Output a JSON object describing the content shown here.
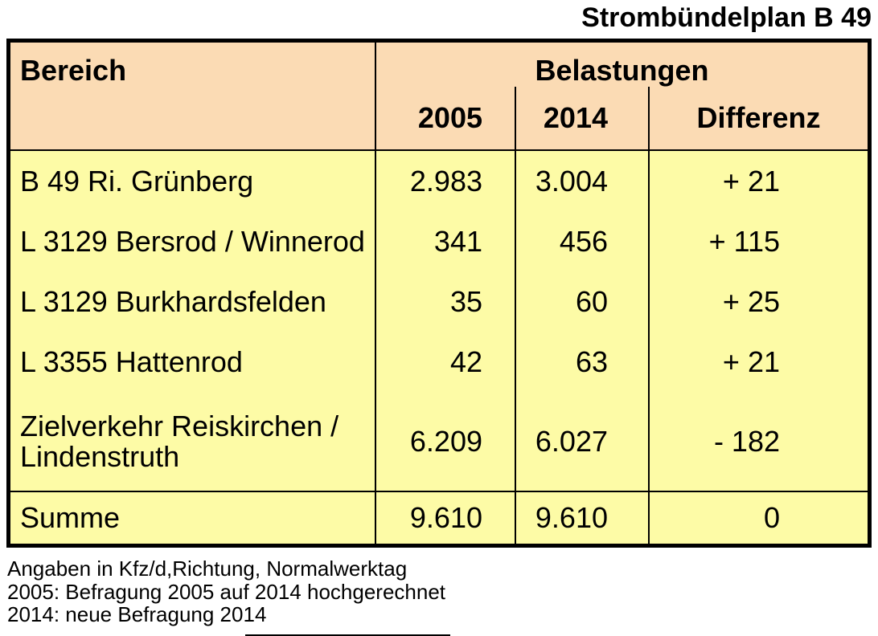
{
  "title": "Strombündelplan B 49",
  "table": {
    "headers": {
      "bereich": "Bereich",
      "group": "Belastungen",
      "y2005": "2005",
      "y2014": "2014",
      "diff": "Differenz"
    },
    "rows": [
      {
        "name": "B 49 Ri. Grünberg",
        "y2005": "2.983",
        "y2014": "3.004",
        "diff": "+ 21"
      },
      {
        "name": "L 3129 Bersrod / Winnerod",
        "y2005": "341",
        "y2014": "456",
        "diff": "+ 115"
      },
      {
        "name": "L 3129 Burkhardsfelden",
        "y2005": "35",
        "y2014": "60",
        "diff": "+ 25"
      },
      {
        "name": "L 3355 Hattenrod",
        "y2005": "42",
        "y2014": "63",
        "diff": "+ 21"
      },
      {
        "name": "Zielverkehr Reiskirchen / Lindenstruth",
        "y2005": "6.209",
        "y2014": "6.027",
        "diff": "- 182"
      }
    ],
    "total": {
      "name": "Summe",
      "y2005": "9.610",
      "y2014": "9.610",
      "diff": "0"
    }
  },
  "notes": [
    "Angaben in Kfz/d,Richtung, Normalwerktag",
    "2005: Befragung 2005 auf 2014 hochgerechnet",
    "2014: neue Befragung 2014"
  ],
  "colors": {
    "header_bg": "#FBDBB4",
    "body_bg": "#FDFBA6",
    "border": "#000000"
  }
}
